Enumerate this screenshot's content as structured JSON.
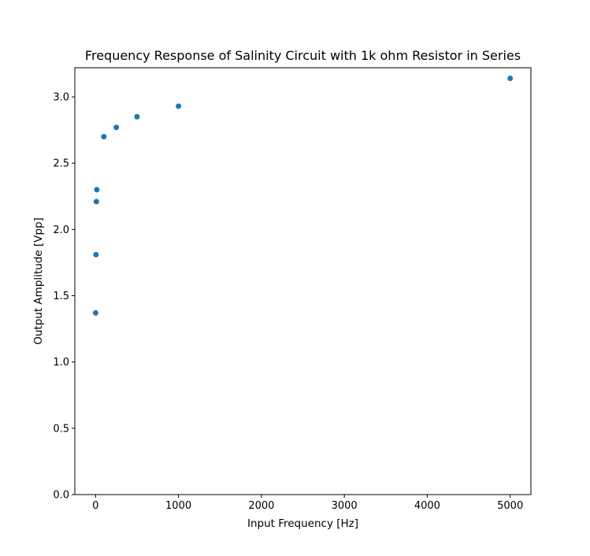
{
  "chart_data": {
    "type": "scatter",
    "title": "Frequency Response of Salinity Circuit with 1k ohm Resistor in Series",
    "xlabel": "Input Frequency [Hz]",
    "ylabel": "Output Amplitude [Vpp]",
    "xlim": [
      -250,
      5250
    ],
    "ylim": [
      0,
      3.22
    ],
    "xticks": [
      0,
      1000,
      2000,
      3000,
      4000,
      5000
    ],
    "xtick_labels": [
      "0",
      "1000",
      "2000",
      "3000",
      "4000",
      "5000"
    ],
    "yticks": [
      0,
      0.5,
      1.0,
      1.5,
      2.0,
      2.5,
      3.0
    ],
    "ytick_labels": [
      "0.0",
      "0.5",
      "1.0",
      "1.5",
      "2.0",
      "2.5",
      "3.0"
    ],
    "grid": false,
    "color": "#1f77b4",
    "x": [
      1,
      5,
      10,
      15,
      100,
      250,
      500,
      1000,
      5000
    ],
    "y": [
      1.37,
      1.81,
      2.21,
      2.3,
      2.7,
      2.77,
      2.85,
      2.93,
      3.14
    ]
  }
}
